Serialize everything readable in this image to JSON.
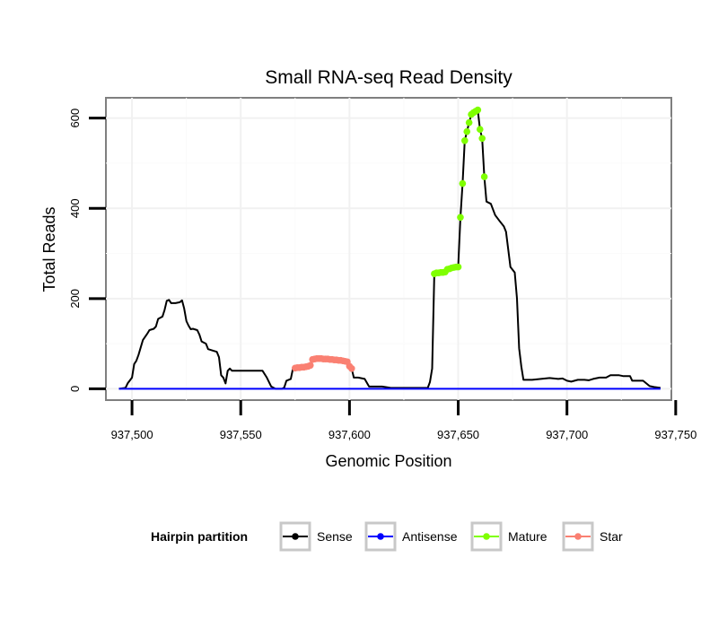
{
  "chart_data": {
    "type": "line",
    "title": "Small RNA-seq Read Density",
    "xlabel": "Genomic Position",
    "ylabel": "Total Reads",
    "xlim": [
      937488,
      937748
    ],
    "ylim": [
      -25,
      645
    ],
    "x_ticks": [
      937500,
      937550,
      937600,
      937650,
      937700,
      937750
    ],
    "x_tick_labels": [
      "937,500",
      "937,550",
      "937,600",
      "937,650",
      "937,700",
      "937,750"
    ],
    "y_ticks": [
      0,
      200,
      400,
      600
    ],
    "y_tick_labels": [
      "0",
      "200",
      "400",
      "600"
    ],
    "grid": true,
    "legend": {
      "title": "Hairpin partition",
      "position": "bottom",
      "entries": [
        "Sense",
        "Antisense",
        "Mature",
        "Star"
      ]
    },
    "series": [
      {
        "name": "Sense",
        "style": "line",
        "color": "#000000",
        "points": [
          [
            937494,
            0
          ],
          [
            937497,
            2
          ],
          [
            937498,
            12
          ],
          [
            937500,
            25
          ],
          [
            937501,
            55
          ],
          [
            937502,
            62
          ],
          [
            937503,
            75
          ],
          [
            937504,
            92
          ],
          [
            937505,
            108
          ],
          [
            937507,
            122
          ],
          [
            937508,
            130
          ],
          [
            937510,
            133
          ],
          [
            937511,
            138
          ],
          [
            937512,
            155
          ],
          [
            937514,
            160
          ],
          [
            937515,
            175
          ],
          [
            937516,
            195
          ],
          [
            937517,
            197
          ],
          [
            937518,
            190
          ],
          [
            937520,
            190
          ],
          [
            937522,
            192
          ],
          [
            937523,
            196
          ],
          [
            937524,
            178
          ],
          [
            937525,
            150
          ],
          [
            937526,
            140
          ],
          [
            937527,
            132
          ],
          [
            937528,
            133
          ],
          [
            937530,
            130
          ],
          [
            937531,
            120
          ],
          [
            937532,
            105
          ],
          [
            937534,
            100
          ],
          [
            937535,
            88
          ],
          [
            937537,
            85
          ],
          [
            937539,
            82
          ],
          [
            937540,
            70
          ],
          [
            937541,
            30
          ],
          [
            937542,
            25
          ],
          [
            937543,
            12
          ],
          [
            937544,
            40
          ],
          [
            937545,
            45
          ],
          [
            937546,
            40
          ],
          [
            937550,
            40
          ],
          [
            937557,
            40
          ],
          [
            937560,
            40
          ],
          [
            937562,
            25
          ],
          [
            937564,
            5
          ],
          [
            937566,
            0
          ],
          [
            937569,
            0
          ],
          [
            937570,
            3
          ],
          [
            937571,
            18
          ],
          [
            937573,
            22
          ],
          [
            937574,
            45
          ],
          [
            937575,
            48
          ],
          [
            937580,
            48
          ],
          [
            937582,
            52
          ],
          [
            937583,
            65
          ],
          [
            937585,
            68
          ],
          [
            937590,
            66
          ],
          [
            937592,
            65
          ],
          [
            937595,
            63
          ],
          [
            937597,
            63
          ],
          [
            937599,
            60
          ],
          [
            937600,
            50
          ],
          [
            937601,
            45
          ],
          [
            937602,
            25
          ],
          [
            937604,
            25
          ],
          [
            937607,
            22
          ],
          [
            937609,
            5
          ],
          [
            937615,
            5
          ],
          [
            937619,
            2
          ],
          [
            937628,
            2
          ],
          [
            937636,
            2
          ],
          [
            937637,
            15
          ],
          [
            937638,
            45
          ],
          [
            937639,
            255
          ],
          [
            937640,
            258
          ],
          [
            937643,
            258
          ],
          [
            937645,
            265
          ],
          [
            937647,
            268
          ],
          [
            937650,
            270
          ],
          [
            937651,
            380
          ],
          [
            937652,
            455
          ],
          [
            937653,
            550
          ],
          [
            937654,
            570
          ],
          [
            937655,
            590
          ],
          [
            937656,
            608
          ],
          [
            937657,
            615
          ],
          [
            937658,
            618
          ],
          [
            937659,
            618
          ],
          [
            937660,
            575
          ],
          [
            937661,
            555
          ],
          [
            937662,
            470
          ],
          [
            937663,
            415
          ],
          [
            937665,
            410
          ],
          [
            937667,
            385
          ],
          [
            937669,
            372
          ],
          [
            937671,
            360
          ],
          [
            937672,
            348
          ],
          [
            937674,
            270
          ],
          [
            937676,
            258
          ],
          [
            937677,
            200
          ],
          [
            937678,
            90
          ],
          [
            937679,
            50
          ],
          [
            937680,
            20
          ],
          [
            937684,
            20
          ],
          [
            937688,
            22
          ],
          [
            937692,
            24
          ],
          [
            937696,
            22
          ],
          [
            937698,
            23
          ],
          [
            937700,
            18
          ],
          [
            937702,
            16
          ],
          [
            937705,
            20
          ],
          [
            937708,
            20
          ],
          [
            937710,
            19
          ],
          [
            937712,
            22
          ],
          [
            937715,
            25
          ],
          [
            937718,
            25
          ],
          [
            937720,
            30
          ],
          [
            937724,
            30
          ],
          [
            937726,
            28
          ],
          [
            937729,
            28
          ],
          [
            937730,
            18
          ],
          [
            937735,
            18
          ],
          [
            937738,
            6
          ],
          [
            937740,
            4
          ],
          [
            937743,
            2
          ]
        ]
      },
      {
        "name": "Antisense",
        "style": "line",
        "color": "#0000ff",
        "points": [
          [
            937494,
            0
          ],
          [
            937743,
            0
          ]
        ]
      },
      {
        "name": "Mature",
        "style": "points",
        "color": "#7fff00",
        "points": [
          [
            937639,
            255
          ],
          [
            937640,
            257
          ],
          [
            937641,
            257
          ],
          [
            937642,
            258
          ],
          [
            937643,
            258
          ],
          [
            937644,
            259
          ],
          [
            937645,
            265
          ],
          [
            937646,
            266
          ],
          [
            937647,
            268
          ],
          [
            937648,
            269
          ],
          [
            937649,
            270
          ],
          [
            937650,
            270
          ],
          [
            937651,
            380
          ],
          [
            937652,
            455
          ],
          [
            937653,
            550
          ],
          [
            937654,
            570
          ],
          [
            937655,
            590
          ],
          [
            937656,
            608
          ],
          [
            937657,
            612
          ],
          [
            937658,
            615
          ],
          [
            937659,
            618
          ],
          [
            937660,
            575
          ],
          [
            937661,
            555
          ],
          [
            937662,
            470
          ]
        ]
      },
      {
        "name": "Star",
        "style": "points",
        "color": "#fa8072",
        "points": [
          [
            937575,
            46
          ],
          [
            937576,
            47
          ],
          [
            937577,
            47
          ],
          [
            937578,
            48
          ],
          [
            937579,
            48
          ],
          [
            937580,
            49
          ],
          [
            937581,
            50
          ],
          [
            937582,
            52
          ],
          [
            937583,
            65
          ],
          [
            937584,
            66
          ],
          [
            937585,
            67
          ],
          [
            937586,
            67
          ],
          [
            937587,
            67
          ],
          [
            937588,
            66
          ],
          [
            937589,
            66
          ],
          [
            937590,
            66
          ],
          [
            937591,
            65
          ],
          [
            937592,
            65
          ],
          [
            937593,
            64
          ],
          [
            937594,
            64
          ],
          [
            937595,
            63
          ],
          [
            937596,
            63
          ],
          [
            937597,
            62
          ],
          [
            937598,
            61
          ],
          [
            937599,
            60
          ],
          [
            937600,
            50
          ],
          [
            937601,
            45
          ]
        ]
      }
    ]
  }
}
